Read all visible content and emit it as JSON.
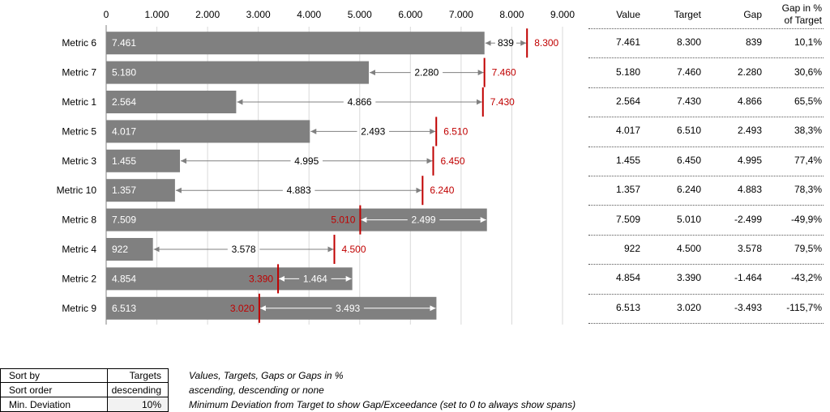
{
  "chart_data": {
    "type": "bar",
    "xlim": [
      0,
      9000
    ],
    "x_ticks": [
      "0",
      "1.000",
      "2.000",
      "3.000",
      "4.000",
      "5.000",
      "6.000",
      "7.000",
      "8.000",
      "9.000"
    ],
    "x_tick_values": [
      0,
      1000,
      2000,
      3000,
      4000,
      5000,
      6000,
      7000,
      8000,
      9000
    ],
    "categories": [
      "Metric 6",
      "Metric 7",
      "Metric 1",
      "Metric 5",
      "Metric 3",
      "Metric 10",
      "Metric 8",
      "Metric 4",
      "Metric 2",
      "Metric 9"
    ],
    "values": [
      7461,
      5180,
      2564,
      4017,
      1455,
      1357,
      7509,
      922,
      4854,
      6513
    ],
    "targets": [
      8300,
      7460,
      7430,
      6510,
      6450,
      6240,
      5010,
      4500,
      3390,
      3020
    ],
    "value_labels": [
      "7.461",
      "5.180",
      "2.564",
      "4.017",
      "1.455",
      "1.357",
      "7.509",
      "922",
      "4.854",
      "6.513"
    ],
    "target_labels": [
      "8.300",
      "7.460",
      "7.430",
      "6.510",
      "6.450",
      "6.240",
      "5.010",
      "4.500",
      "3.390",
      "3.020"
    ],
    "gap_labels": [
      "839",
      "2.280",
      "4.866",
      "2.493",
      "4.995",
      "4.883",
      "2.499",
      "3.578",
      "1.464",
      "3.493"
    ],
    "grid": true,
    "colors": {
      "bar": "#808080",
      "target": "#c00000",
      "target_text": "#c00000",
      "grid": "#d9d9d9",
      "arrow": "#808080"
    }
  },
  "table": {
    "headers": [
      "Value",
      "Target",
      "Gap",
      "Gap in % of Target"
    ],
    "rows": [
      [
        "7.461",
        "8.300",
        "839",
        "10,1%"
      ],
      [
        "5.180",
        "7.460",
        "2.280",
        "30,6%"
      ],
      [
        "2.564",
        "7.430",
        "4.866",
        "65,5%"
      ],
      [
        "4.017",
        "6.510",
        "2.493",
        "38,3%"
      ],
      [
        "1.455",
        "6.450",
        "4.995",
        "77,4%"
      ],
      [
        "1.357",
        "6.240",
        "4.883",
        "78,3%"
      ],
      [
        "7.509",
        "5.010",
        "-2.499",
        "-49,9%"
      ],
      [
        "922",
        "4.500",
        "3.578",
        "79,5%"
      ],
      [
        "4.854",
        "3.390",
        "-1.464",
        "-43,2%"
      ],
      [
        "6.513",
        "3.020",
        "-3.493",
        "-115,7%"
      ]
    ]
  },
  "settings": [
    {
      "label": "Sort by",
      "value": "Targets",
      "description": "Values, Targets, Gaps or Gaps in %"
    },
    {
      "label": "Sort order",
      "value": "descending",
      "description": "ascending, descending or none"
    },
    {
      "label": "Min. Deviation",
      "value": "10%",
      "description": "Minimum Deviation from Target to show Gap/Exceedance (set to 0 to always show spans)"
    }
  ]
}
